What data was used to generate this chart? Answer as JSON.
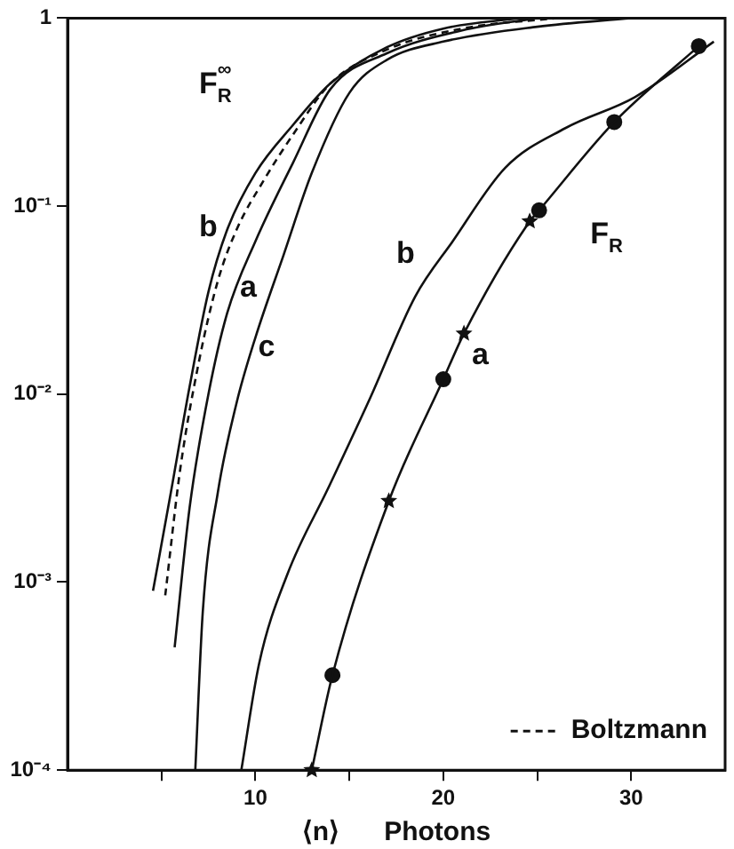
{
  "chart_data": {
    "type": "line",
    "xlabel": "⟨n⟩      Photons",
    "log": "y",
    "xlim": [
      0,
      35
    ],
    "ylim": [
      0.0001,
      1
    ],
    "xticks": [
      {
        "value": 5,
        "label": null
      },
      10,
      {
        "value": 15,
        "label": null
      },
      20,
      {
        "value": 25,
        "label": null
      },
      30
    ],
    "yticks": [
      {
        "value": 0.0001,
        "label": "10⁻⁴"
      },
      {
        "value": 0.001,
        "label": "10⁻³"
      },
      {
        "value": 0.01,
        "label": "10⁻²"
      },
      {
        "value": 0.1,
        "label": "10⁻¹"
      },
      1
    ],
    "grid": false,
    "legend": "bottom right",
    "line_style": "solid",
    "marker": "none",
    "series": [
      {
        "color": "#111111",
        "x": [
          4.55,
          5.5,
          6.5,
          7.5,
          8.5,
          10,
          12,
          14,
          17,
          20,
          24
        ],
        "values": [
          0.0009,
          0.003,
          0.011,
          0.035,
          0.075,
          0.15,
          0.27,
          0.45,
          0.7,
          0.88,
          1
        ]
      },
      {
        "name": "Boltzmann",
        "color": "#111111",
        "line_style": "dashed",
        "x": [
          5.2,
          6,
          7,
          8,
          9,
          10.5,
          12,
          14,
          17,
          21,
          26
        ],
        "values": [
          0.00085,
          0.004,
          0.015,
          0.04,
          0.075,
          0.14,
          0.24,
          0.45,
          0.68,
          0.88,
          1
        ]
      },
      {
        "color": "#111111",
        "x": [
          5.7,
          6.5,
          7.5,
          8.5,
          10,
          12,
          14,
          17,
          21,
          25
        ],
        "values": [
          0.00045,
          0.0025,
          0.01,
          0.027,
          0.065,
          0.17,
          0.42,
          0.65,
          0.86,
          1
        ]
      },
      {
        "color": "#111111",
        "x": [
          6.8,
          7.2,
          8,
          9,
          10,
          11.5,
          13,
          15,
          17,
          20,
          25,
          30
        ],
        "values": [
          0.0001,
          0.0007,
          0.003,
          0.009,
          0.02,
          0.055,
          0.15,
          0.4,
          0.6,
          0.75,
          0.9,
          1
        ]
      },
      {
        "color": "#111111",
        "x": [
          9.25,
          10.2,
          11.7,
          13.9,
          16.1,
          18.5,
          20.5,
          23.3,
          26.5,
          30.2,
          34.4
        ],
        "values": [
          0.0001,
          0.00037,
          0.0011,
          0.0032,
          0.0095,
          0.033,
          0.065,
          0.16,
          0.26,
          0.38,
          0.75
        ]
      },
      {
        "color": "#111111",
        "x": [
          13,
          14.1,
          17.1,
          20,
          21.1,
          24.6,
          25.1,
          29.1,
          33.6
        ],
        "values": [
          0.0001,
          0.00032,
          0.0027,
          0.012,
          0.021,
          0.083,
          0.095,
          0.28,
          0.71
        ]
      },
      {
        "type": "scatter",
        "marker": "circle",
        "color": "#111111",
        "x": [
          14.1,
          20,
          25.1,
          29.1,
          33.6
        ],
        "values": [
          0.00032,
          0.012,
          0.095,
          0.28,
          0.71
        ]
      },
      {
        "type": "scatter",
        "marker": "star",
        "color": "#111111",
        "x": [
          13,
          17.1,
          21.1,
          24.6
        ],
        "values": [
          0.0001,
          0.0027,
          0.021,
          0.083
        ]
      }
    ],
    "annotations": [
      "F$_{R}$$^{∞}$",
      "b",
      "a",
      "c",
      "b",
      "a",
      "F$_{R}$"
    ]
  }
}
